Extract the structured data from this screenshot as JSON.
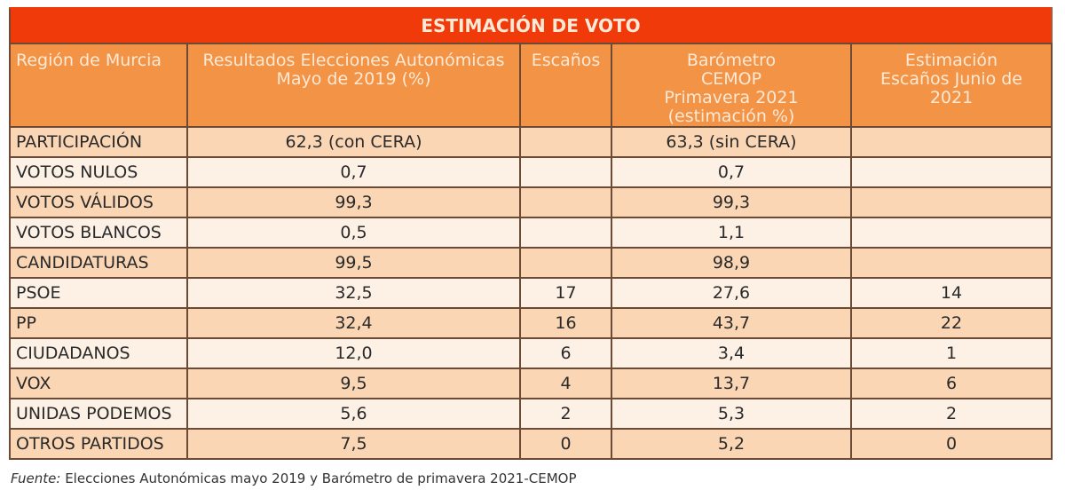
{
  "chart_data": {
    "type": "table",
    "title": "ESTIMACIÓN DE VOTO",
    "columns": [
      "Región de Murcia",
      "Resultados Elecciones Autonómicas Mayo de 2019 (%)",
      "Escaños",
      "Barómetro CEMOP Primavera 2021 (estimación %)",
      "Estimación Escaños Junio de 2021"
    ],
    "rows": [
      [
        "PARTICIPACIÓN",
        "62,3 (con CERA)",
        "",
        "63,3 (sin CERA)",
        ""
      ],
      [
        "VOTOS NULOS",
        "0,7",
        "",
        "0,7",
        ""
      ],
      [
        "VOTOS VÁLIDOS",
        "99,3",
        "",
        "99,3",
        ""
      ],
      [
        "VOTOS BLANCOS",
        "0,5",
        "",
        "1,1",
        ""
      ],
      [
        "CANDIDATURAS",
        "99,5",
        "",
        "98,9",
        ""
      ],
      [
        "PSOE",
        "32,5",
        "17",
        "27,6",
        "14"
      ],
      [
        "PP",
        "32,4",
        "16",
        "43,7",
        "22"
      ],
      [
        "CIUDADANOS",
        "12,0",
        "6",
        "3,4",
        "1"
      ],
      [
        "VOX",
        "9,5",
        "4",
        "13,7",
        "6"
      ],
      [
        "UNIDAS PODEMOS",
        "5,6",
        "2",
        "5,3",
        "2"
      ],
      [
        "OTROS PARTIDOS",
        "7,5",
        "0",
        "5,2",
        "0"
      ]
    ]
  },
  "footer": {
    "label": "Fuente:",
    "text": " Elecciones Autonómicas mayo 2019 y Barómetro de primavera 2021-CEMOP"
  },
  "colors": {
    "title": "#f03a0a",
    "header": "#f39345",
    "row_odd": "#fbd6b5",
    "row_even": "#fdf1e6"
  }
}
